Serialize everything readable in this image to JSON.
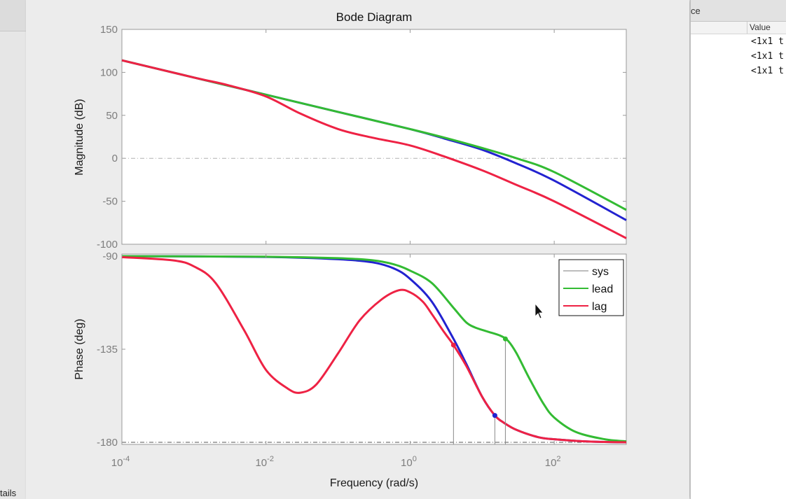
{
  "workspace_panel": {
    "title_fragment": "ce",
    "column_header": "Value",
    "rows": [
      "<1x1 t",
      "<1x1 t",
      "<1x1 t"
    ]
  },
  "left_panel": {
    "fragment": "tails"
  },
  "chart_data": {
    "type": "line",
    "title": "Bode Diagram",
    "xlabel": "Frequency  (rad/s)",
    "x_scale": "log",
    "xlim": [
      0.0001,
      1000
    ],
    "x_ticks": [
      {
        "base": "10",
        "exp": "-4"
      },
      {
        "base": "10",
        "exp": "-2"
      },
      {
        "base": "10",
        "exp": "0"
      },
      {
        "base": "10",
        "exp": "2"
      }
    ],
    "legend": {
      "placement": "top-right",
      "entries": [
        "sys",
        "lead",
        "lag"
      ]
    },
    "colors": {
      "sys": "#2222d0",
      "lead": "#33bb33",
      "lag": "#ee2244"
    },
    "magnitude": {
      "ylabel": "Magnitude (dB)",
      "ylim": [
        -100,
        150
      ],
      "yticks": [
        "150",
        "100",
        "50",
        "0",
        "-50",
        "-100"
      ],
      "series": [
        {
          "name": "sys",
          "x": [
            0.0001,
            0.001,
            0.01,
            0.1,
            1,
            3,
            10,
            30,
            100,
            1000
          ],
          "y": [
            114,
            94,
            74,
            54,
            34,
            23,
            10,
            -6,
            -26,
            -72
          ]
        },
        {
          "name": "lead",
          "x": [
            0.0001,
            0.001,
            0.01,
            0.1,
            1,
            3,
            10,
            30,
            100,
            1000
          ],
          "y": [
            114,
            94,
            74,
            54,
            34,
            24,
            12,
            0,
            -16,
            -60
          ]
        },
        {
          "name": "lag",
          "x": [
            0.0001,
            0.001,
            0.003,
            0.01,
            0.03,
            0.1,
            0.3,
            1,
            3,
            10,
            30,
            100,
            1000
          ],
          "y": [
            114,
            94,
            85,
            72,
            52,
            34,
            24,
            15,
            2,
            -14,
            -31,
            -50,
            -93
          ]
        }
      ]
    },
    "phase": {
      "ylabel": "Phase (deg)",
      "ylim": [
        -181,
        -89
      ],
      "yticks": [
        "-90",
        "-135",
        "-180"
      ],
      "series": [
        {
          "name": "sys",
          "x": [
            0.0001,
            0.01,
            0.1,
            0.3,
            0.6,
            1,
            2,
            4,
            6,
            10,
            15,
            20,
            30,
            60,
            100,
            300,
            1000
          ],
          "y": [
            -90,
            -90.4,
            -91.5,
            -93,
            -96,
            -101,
            -112,
            -130,
            -142,
            -158,
            -167,
            -170.5,
            -174,
            -177.5,
            -178.5,
            -179.6,
            -180
          ]
        },
        {
          "name": "lead",
          "x": [
            0.0001,
            0.01,
            0.1,
            0.3,
            0.6,
            1,
            2,
            4,
            6,
            8,
            12,
            18,
            23,
            30,
            45,
            70,
            100,
            200,
            500,
            1000
          ],
          "y": [
            -90,
            -90.3,
            -91,
            -92,
            -94,
            -97,
            -103,
            -115,
            -122,
            -124.5,
            -126.5,
            -128.5,
            -131,
            -137,
            -149,
            -161,
            -168,
            -175,
            -178.5,
            -179.5
          ]
        },
        {
          "name": "lag",
          "x": [
            0.0001,
            0.0005,
            0.001,
            0.002,
            0.005,
            0.01,
            0.02,
            0.03,
            0.05,
            0.1,
            0.2,
            0.4,
            0.7,
            1,
            1.5,
            2,
            3,
            4,
            6,
            10,
            15,
            20,
            30,
            60,
            100,
            300,
            1000
          ],
          "y": [
            -90.5,
            -92,
            -95,
            -103,
            -126,
            -145,
            -154,
            -156,
            -152,
            -137,
            -121,
            -111,
            -106.5,
            -107.5,
            -112,
            -118,
            -127,
            -133,
            -143,
            -158,
            -167,
            -170.5,
            -174,
            -177.5,
            -178.5,
            -179.6,
            -180
          ]
        }
      ],
      "markers": [
        {
          "series": "lag",
          "x": 4,
          "y": -133
        },
        {
          "series": "sys",
          "x": 15,
          "y": -167
        },
        {
          "series": "lead",
          "x": 21,
          "y": -130
        }
      ]
    }
  }
}
